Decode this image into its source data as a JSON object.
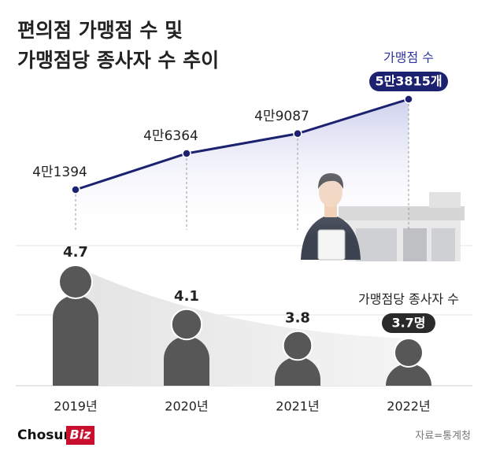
{
  "title": [
    "편의점 가맹점 수 및",
    "가맹점당 종사자 수 추이"
  ],
  "chart_data": [
    {
      "type": "line",
      "name": "가맹점 수",
      "color": "#1c2170",
      "values": [
        41394,
        46364,
        49087,
        53815
      ],
      "value_labels": [
        "4만1394",
        "4만6364",
        "4만9087",
        "5만3815개"
      ]
    },
    {
      "type": "pictogram",
      "name": "가맹점당 종사자 수",
      "color": "#575757",
      "categories": [
        "2019년",
        "2020년",
        "2021년",
        "2022년"
      ],
      "values": [
        4.7,
        4.1,
        3.8,
        3.7
      ],
      "value_labels": [
        "4.7",
        "4.1",
        "3.8",
        "3.7명"
      ]
    }
  ],
  "logo": [
    "Chosun",
    "Biz"
  ],
  "source": "자료=통계청"
}
